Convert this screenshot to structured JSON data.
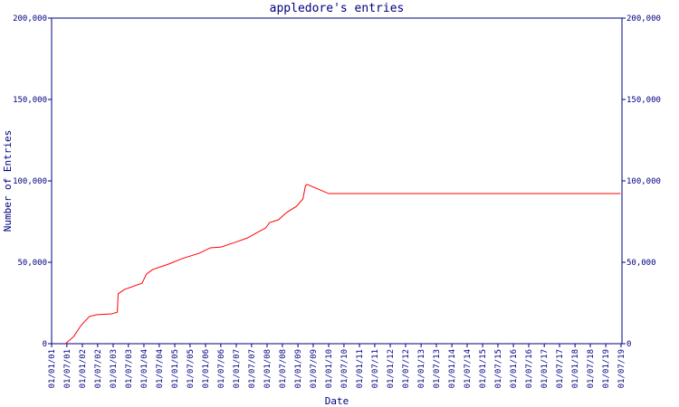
{
  "chart_data": {
    "type": "line",
    "title": "appledore's entries",
    "x_label": "Date",
    "y_label": "Number of Entries",
    "x": [
      "15/06/01",
      "20/09/01",
      "15/12/01",
      "25/03/02",
      "15/06/02",
      "15/12/02",
      "20/02/03",
      "01/03/03",
      "15/05/03",
      "10/12/03",
      "01/02/04",
      "15/04/04",
      "20/10/04",
      "25/03/05",
      "20/10/05",
      "01/03/06",
      "05/07/06",
      "15/12/06",
      "15/05/07",
      "20/08/07",
      "15/12/07",
      "01/02/08",
      "15/05/08",
      "20/08/08",
      "15/12/08",
      "01/03/09",
      "01/04/09",
      "20/04/09",
      "01/01/10",
      "25/06/19"
    ],
    "series": [
      {
        "name": "appledore",
        "color": "#ff0000",
        "values": [
          0,
          4400,
          11100,
          16700,
          17800,
          18300,
          19400,
          30600,
          33300,
          37200,
          42800,
          45600,
          48900,
          52200,
          55600,
          58900,
          59400,
          62200,
          65000,
          67800,
          71100,
          74400,
          76100,
          80600,
          84400,
          88900,
          97200,
          97800,
          92200,
          92200
        ]
      }
    ],
    "xlim": [
      "01/01/01",
      "01/07/19"
    ],
    "xticks": [
      "01/01/01",
      "01/07/01",
      "01/01/02",
      "01/07/02",
      "01/01/03",
      "01/07/03",
      "01/01/04",
      "01/07/04",
      "01/01/05",
      "01/07/05",
      "01/01/06",
      "01/07/06",
      "01/01/07",
      "01/07/07",
      "01/01/08",
      "01/07/08",
      "01/01/09",
      "01/07/09",
      "01/01/10",
      "01/07/10",
      "01/01/11",
      "01/07/11",
      "01/01/12",
      "01/07/12",
      "01/01/13",
      "01/07/13",
      "01/01/14",
      "01/07/14",
      "01/01/15",
      "01/07/15",
      "01/01/16",
      "01/07/16",
      "01/01/17",
      "01/07/17",
      "01/01/18",
      "01/07/18",
      "01/01/19",
      "01/07/19"
    ],
    "ylim": [
      0,
      200000
    ],
    "yticks": [
      0,
      {
        "value": 50000,
        "label": "50,000"
      },
      {
        "value": 100000,
        "label": "100,000"
      },
      {
        "value": 150000,
        "label": "150,000"
      },
      {
        "value": 200000,
        "label": "200,000"
      }
    ],
    "axis_color": "#000080"
  }
}
